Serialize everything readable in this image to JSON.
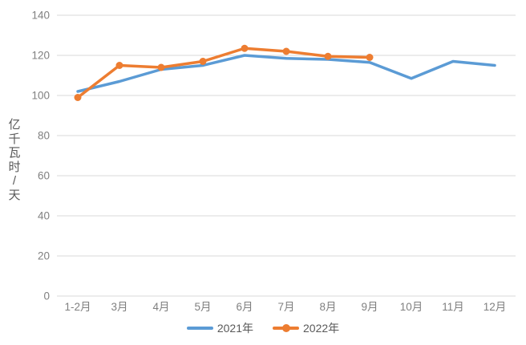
{
  "chart_data": {
    "type": "line",
    "title": "",
    "categories": [
      "1-2月",
      "3月",
      "4月",
      "5月",
      "6月",
      "7月",
      "8月",
      "9月",
      "10月",
      "11月",
      "12月"
    ],
    "series": [
      {
        "name": "2021年",
        "color": "#5B9BD5",
        "marker": "none",
        "values": [
          102,
          107,
          113,
          115,
          120,
          118.5,
          118,
          116.5,
          108.5,
          117,
          115
        ]
      },
      {
        "name": "2022年",
        "color": "#ED7D31",
        "marker": "circle",
        "values": [
          99,
          115,
          114,
          117,
          123.5,
          122,
          119.5,
          119
        ]
      }
    ],
    "xlabel": "",
    "ylabel": "亿千瓦时/天",
    "ylim": [
      0,
      140
    ],
    "ytick_step": 20,
    "yticks": [
      "0",
      "20",
      "40",
      "60",
      "80",
      "100",
      "120",
      "140"
    ],
    "grid": true,
    "legend_position": "bottom",
    "colors": {
      "gridline": "#D9D9D9",
      "tick_label": "#808080",
      "axis_title": "#595959",
      "legend_text": "#595959",
      "background": "#FFFFFF"
    }
  }
}
